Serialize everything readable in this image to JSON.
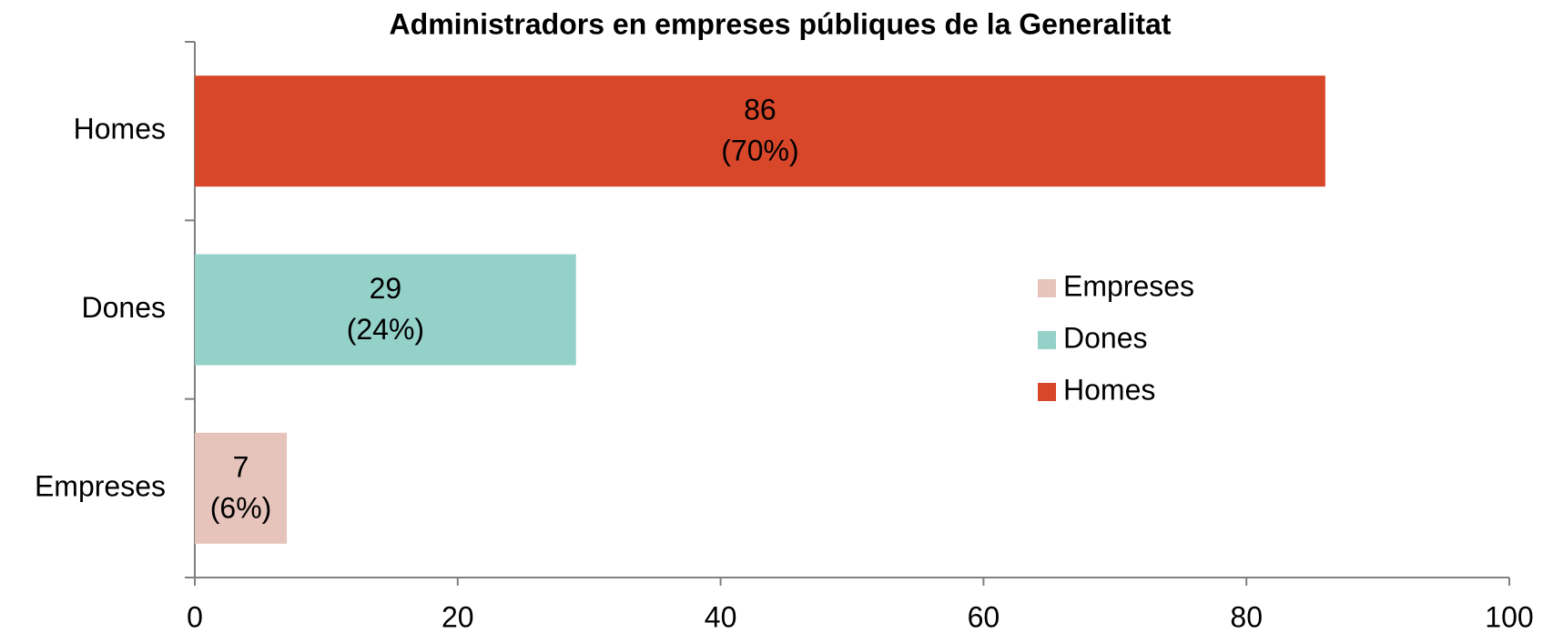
{
  "chart_data": {
    "type": "bar",
    "orientation": "horizontal",
    "title": "Administradors en empreses públiques de la Generalitat",
    "categories": [
      "Homes",
      "Dones",
      "Empreses"
    ],
    "values": [
      86,
      29,
      7
    ],
    "shares": [
      70,
      24,
      6
    ],
    "share_labels": [
      "(70%)",
      "(24%)",
      "(6%)"
    ],
    "colors": [
      "#d9472b",
      "#94d1c9",
      "#e6c4bb"
    ],
    "xlim": [
      0,
      100
    ],
    "xticks": [
      0,
      20,
      40,
      60,
      80,
      100
    ],
    "grid": false,
    "legend": "right"
  }
}
